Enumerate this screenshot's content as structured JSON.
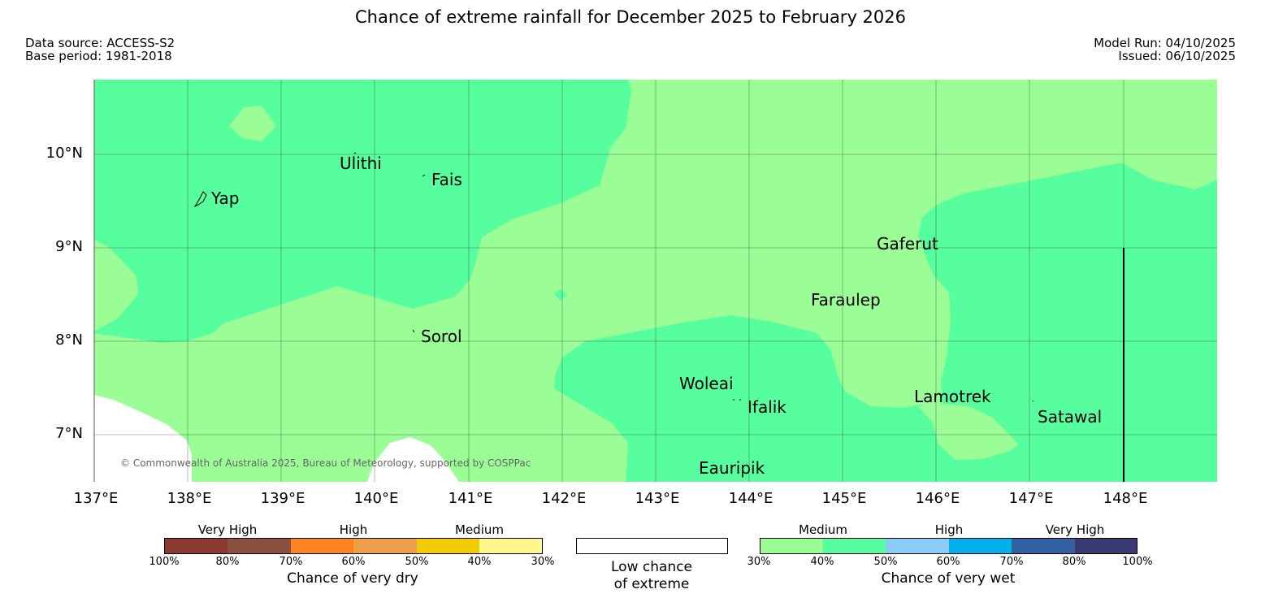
{
  "title": "Chance of extreme rainfall for December 2025 to February 2026",
  "data_source": "Data source: ACCESS-S2",
  "base_period": "Base period: 1981-2018",
  "model_run": "Model Run: 04/10/2025",
  "issued": "Issued: 06/10/2025",
  "copyright": "© Commonwealth of Australia 2025, Bureau of Meteorology, supported by COSPPac",
  "lat_labels": [
    "10°N",
    "9°N",
    "8°N",
    "7°N"
  ],
  "lon_labels": [
    "137°E",
    "138°E",
    "139°E",
    "140°E",
    "141°E",
    "142°E",
    "143°E",
    "144°E",
    "145°E",
    "146°E",
    "147°E",
    "148°E"
  ],
  "places": {
    "yap": "Yap",
    "ulithi": "Ulithi",
    "fais": "Fais",
    "sorol": "Sorol",
    "gaferut": "Gaferut",
    "faraulep": "Faraulep",
    "woleai": "Woleai",
    "ifalik": "Ifalik",
    "eauripik": "Eauripik",
    "lamotrek": "Lamotrek",
    "satawal": "Satawal"
  },
  "colors": {
    "medium_wet": "#9afd96",
    "high_wet_40_50": "#57fe9d",
    "low_chance": "#ffffff"
  },
  "legend": {
    "dry": {
      "categories": [
        "Very High",
        "High",
        "Medium"
      ],
      "ticks": [
        "100%",
        "80%",
        "70%",
        "60%",
        "50%",
        "40%",
        "30%"
      ],
      "colors": [
        "#8b3a33",
        "#8d5040",
        "#fe8220",
        "#ef9e4a",
        "#f2cb00",
        "#fff88e"
      ],
      "caption": "Chance of very dry"
    },
    "low": {
      "line1": "Low chance",
      "line2": "of extreme"
    },
    "wet": {
      "categories": [
        "Medium",
        "High",
        "Very High"
      ],
      "ticks": [
        "30%",
        "40%",
        "50%",
        "60%",
        "70%",
        "80%",
        "100%"
      ],
      "colors": [
        "#9afd96",
        "#57fe9d",
        "#87cdf8",
        "#00b0ed",
        "#3560a0",
        "#3b3874"
      ],
      "caption": "Chance of very wet"
    }
  }
}
